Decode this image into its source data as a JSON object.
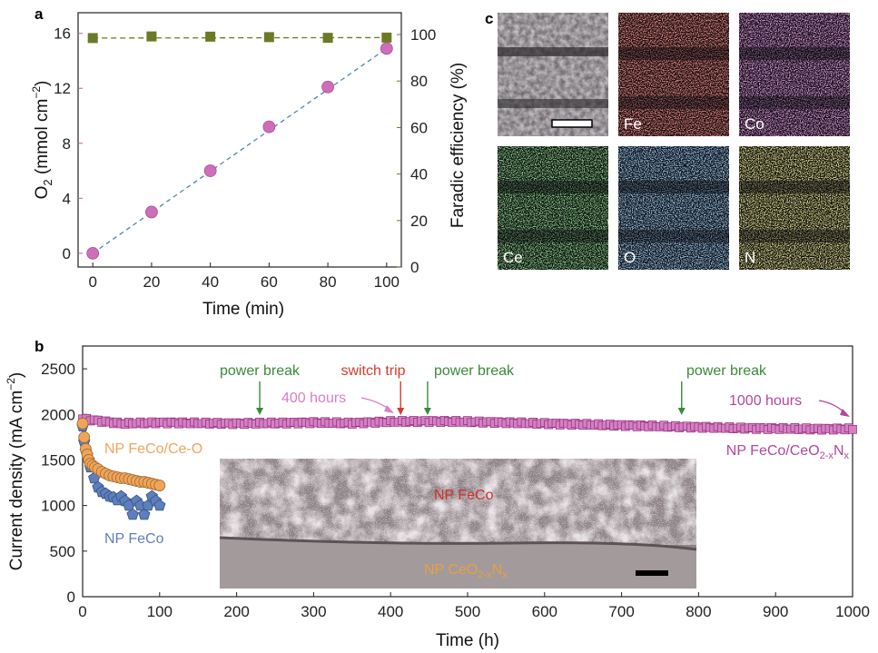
{
  "panel_labels": {
    "a": "a",
    "b": "b",
    "c": "c"
  },
  "chart_data": [
    {
      "panel": "a",
      "type": "scatter",
      "x": [
        0,
        20,
        40,
        60,
        80,
        100
      ],
      "xlabel": "Time (min)",
      "xlim": [
        -5,
        105
      ],
      "xticks": [
        "0",
        "20",
        "40",
        "60",
        "80",
        "100"
      ],
      "series": [
        {
          "name": "O2",
          "axis": "left",
          "marker": "circle",
          "color": "#cd6fb8",
          "fit_line": true,
          "values": [
            0,
            3.0,
            6.0,
            9.2,
            12.1,
            14.9
          ]
        },
        {
          "name": "Faradic efficiency",
          "axis": "right",
          "marker": "square",
          "color": "#6b7a25",
          "values": [
            98.5,
            99.2,
            99.1,
            98.9,
            98.6,
            98.7
          ]
        }
      ],
      "ylabel_left_main": "O",
      "ylabel_left_sub": "2",
      "ylabel_left_unit": " (mmol cm",
      "ylabel_left_exp": "−2",
      "ylabel_left_close": ")",
      "ylabel_right": "Faradic efficiency (%)",
      "ylim_left": [
        -1,
        17.5
      ],
      "yticks_left": [
        "0",
        "4",
        "8",
        "12",
        "16"
      ],
      "ylim_right": [
        0,
        109.4
      ],
      "yticks_right": [
        "0",
        "20",
        "40",
        "60",
        "80",
        "100"
      ],
      "colors": {
        "left_axis": "#c45aa8",
        "right_axis": "#6b7a25",
        "fit_line": "#4a86b0"
      }
    },
    {
      "panel": "b",
      "type": "scatter",
      "xlabel": "Time (h)",
      "ylabel_main": "Current density (mA cm",
      "ylabel_exp": "−2",
      "ylabel_close": ")",
      "xlim": [
        0,
        1000
      ],
      "ylim": [
        0,
        2750
      ],
      "xticks": [
        "0",
        "100",
        "200",
        "300",
        "400",
        "500",
        "600",
        "700",
        "800",
        "900",
        "1000"
      ],
      "yticks": [
        "0",
        "500",
        "1000",
        "1500",
        "2000",
        "2500"
      ],
      "series": [
        {
          "name": "NP FeCo/CeO2-xNx",
          "marker": "square",
          "color": "#d77fc4",
          "x": [
            0,
            50,
            100,
            150,
            200,
            250,
            300,
            350,
            400,
            450,
            500,
            550,
            600,
            650,
            700,
            750,
            800,
            850,
            900,
            950,
            1000
          ],
          "values": [
            1950,
            1900,
            1910,
            1905,
            1900,
            1905,
            1910,
            1905,
            1920,
            1925,
            1920,
            1910,
            1900,
            1890,
            1880,
            1870,
            1860,
            1850,
            1845,
            1840,
            1840
          ]
        },
        {
          "name": "NP FeCo/Ce-O",
          "marker": "circle",
          "color": "#f0a45a",
          "x": [
            0,
            2,
            4,
            6,
            8,
            10,
            13,
            16,
            20,
            25,
            30,
            35,
            40,
            45,
            50,
            55,
            60,
            65,
            70,
            75,
            80,
            85,
            90,
            95,
            100
          ],
          "values": [
            1900,
            1750,
            1620,
            1560,
            1500,
            1460,
            1440,
            1420,
            1400,
            1370,
            1350,
            1330,
            1320,
            1310,
            1300,
            1300,
            1290,
            1280,
            1270,
            1260,
            1260,
            1250,
            1240,
            1230,
            1220
          ]
        },
        {
          "name": "NP FeCo",
          "marker": "pentagon",
          "color": "#5e7fbd",
          "x": [
            0,
            2,
            4,
            6,
            8,
            10,
            15,
            20,
            25,
            30,
            35,
            40,
            45,
            50,
            55,
            60,
            65,
            70,
            75,
            80,
            85,
            90,
            95,
            100
          ],
          "values": [
            1870,
            1700,
            1600,
            1550,
            1500,
            1420,
            1300,
            1200,
            1150,
            1130,
            1100,
            1090,
            1060,
            1100,
            1050,
            1000,
            900,
            1050,
            1000,
            900,
            1000,
            1100,
            1050,
            1000
          ]
        }
      ],
      "labels": {
        "np_feco_ce_o": "NP FeCo/Ce-O",
        "np_feco": "NP FeCo",
        "np_feco_ceo2_main": "NP FeCo/CeO",
        "np_feco_ceo2_sub1": "2-x",
        "np_feco_ceo2_mid": "N",
        "np_feco_ceo2_sub2": "x"
      },
      "annotations": {
        "power_break": "power break",
        "switch_trip": "switch trip",
        "hours_400": "400 hours",
        "hours_1000": "1000 hours"
      },
      "power_break_times": [
        230,
        448,
        778
      ],
      "switch_trip_time": 413,
      "colors": {
        "green": "#3a8a3a",
        "red": "#d63a2a",
        "pink_text": "#d87fc6",
        "magenta_text": "#b5469c"
      },
      "inset": {
        "label_top": "NP FeCo",
        "label_bottom_main": "NP CeO",
        "label_bottom_sub1": "2-x",
        "label_bottom_mid": "N",
        "label_bottom_sub2": "x",
        "label_top_color": "#d0322a",
        "label_bottom_color": "#e8a040"
      }
    }
  ],
  "panel_c": {
    "tiles": [
      {
        "label": "",
        "color": "#9a9a9a",
        "kind": "sem"
      },
      {
        "label": "Fe",
        "color": "#d63a32",
        "kind": "map"
      },
      {
        "label": "Co",
        "color": "#b24aa8",
        "kind": "map"
      },
      {
        "label": "Ce",
        "color": "#3f9c3a",
        "kind": "map"
      },
      {
        "label": "O",
        "color": "#4e8ac8",
        "kind": "map"
      },
      {
        "label": "N",
        "color": "#b9b43c",
        "kind": "map"
      }
    ]
  }
}
